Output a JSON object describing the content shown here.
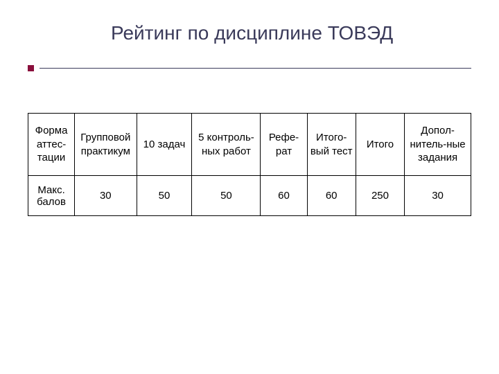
{
  "title": "Рейтинг по дисциплине ТОВЭД",
  "table": {
    "headers": [
      "Форма аттес-тации",
      "Групповой практикум",
      "10 задач",
      "5 контроль-ных работ",
      "Рефе-рат",
      "Итого-вый тест",
      "Итого",
      "Допол-нитель-ные задания"
    ],
    "row_label": "Макс. балов",
    "values": [
      "30",
      "50",
      "50",
      "60",
      "60",
      "250",
      "30"
    ]
  },
  "colors": {
    "title_color": "#3a3a5a",
    "bullet_color": "#8a0f3c",
    "divider_color": "#3a3a5a",
    "border_color": "#000000",
    "text_color": "#000000",
    "background": "#ffffff"
  },
  "typography": {
    "title_fontsize": 28,
    "cell_fontsize": 15,
    "font_family": "Arial"
  },
  "layout": {
    "header_row_height": 90,
    "data_row_height": 58,
    "column_widths_pct": [
      10.5,
      14,
      12.5,
      15.5,
      10.5,
      11,
      11,
      15
    ]
  }
}
